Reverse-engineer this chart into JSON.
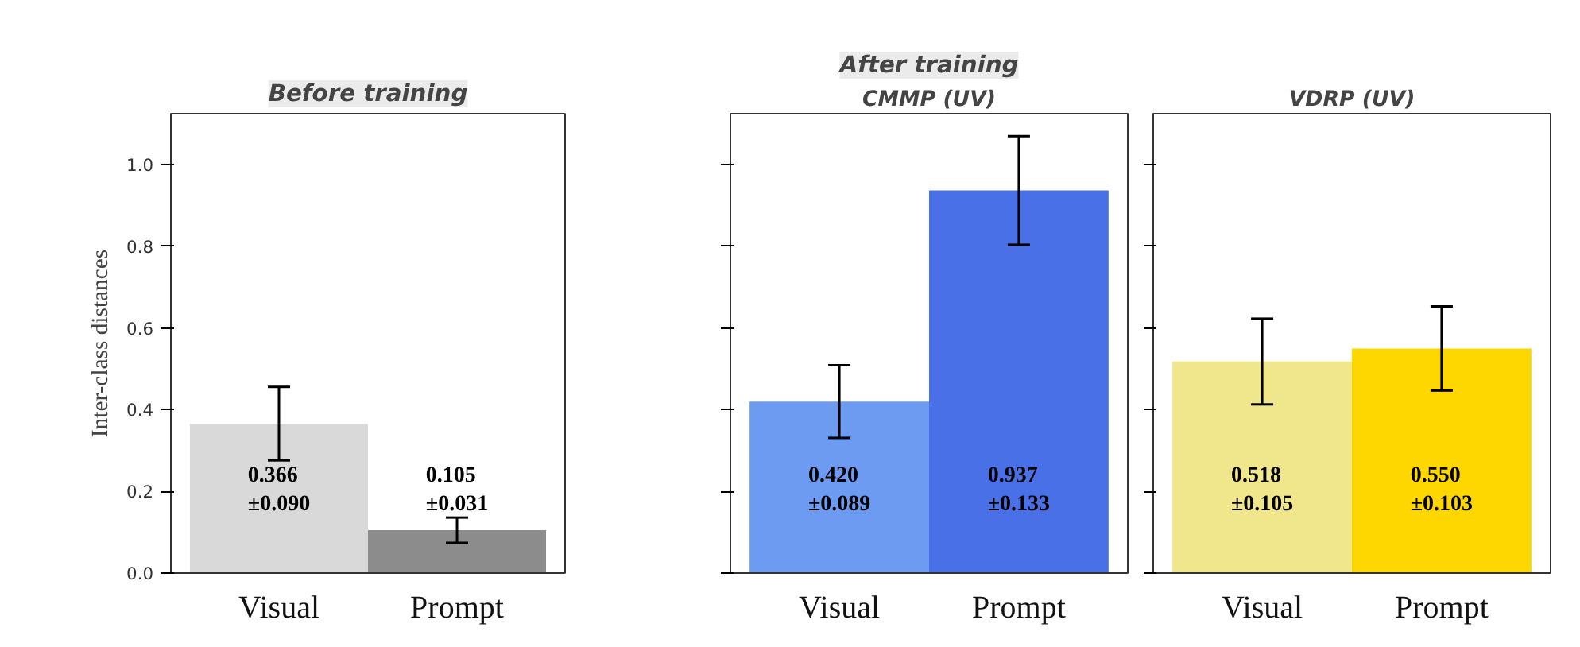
{
  "chart_data": [
    {
      "type": "bar",
      "title": "Before training",
      "ylabel": "Inter-class distances",
      "categories": [
        "Visual",
        "Prompt"
      ],
      "values": [
        0.366,
        0.105
      ],
      "errors": [
        0.09,
        0.031
      ],
      "colors": [
        "#d9d9d9",
        "#8c8c8c"
      ],
      "value_labels": [
        "0.366\n±0.090",
        "0.105\n±0.031"
      ],
      "ylim": [
        0,
        1.125
      ],
      "yticks": [
        {
          "value": 0,
          "label": "0.0"
        },
        0.2,
        0.4,
        0.6,
        0.8,
        {
          "value": 1,
          "label": "1.0"
        }
      ],
      "grid": false
    },
    {
      "type": "bar",
      "title": "After training",
      "subtitle": "CMMP (UV)",
      "categories": [
        "Visual",
        "Prompt"
      ],
      "values": [
        0.42,
        0.937
      ],
      "errors": [
        0.089,
        0.133
      ],
      "colors": [
        "#6d9bf1",
        "#4a70e8"
      ],
      "value_labels": [
        "0.420\n±0.089",
        "0.937\n±0.133"
      ],
      "ylim": [
        0,
        1.125
      ],
      "yticks": [
        0,
        0.2,
        0.4,
        0.6,
        0.8,
        1
      ],
      "tick_labels": "x",
      "grid": false
    },
    {
      "type": "bar",
      "subtitle": "VDRP (UV)",
      "categories": [
        "Visual",
        "Prompt"
      ],
      "values": [
        0.518,
        0.55
      ],
      "errors": [
        0.105,
        0.103
      ],
      "colors": [
        "#f0e68c",
        "#ffd700"
      ],
      "value_labels": [
        "0.518\n±0.105",
        "0.550\n±0.103"
      ],
      "ylim": [
        0,
        1.125
      ],
      "yticks": [
        0,
        0.2,
        0.4,
        0.6,
        0.8,
        1
      ],
      "tick_labels": "x",
      "grid": false
    }
  ]
}
